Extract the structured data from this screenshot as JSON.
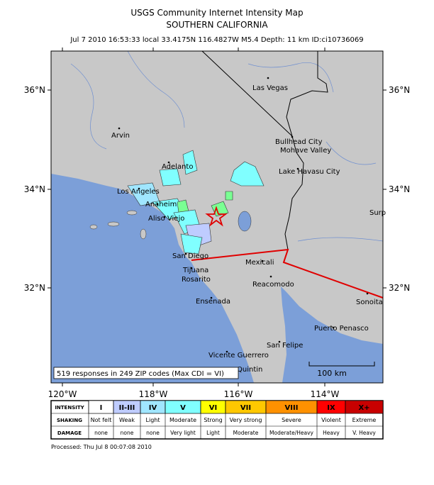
{
  "header": {
    "title": "USGS Community Internet Intensity Map",
    "subtitle": "SOUTHERN CALIFORNIA",
    "info": "Jul 7 2010 16:53:33 local 33.4175N 116.4827W M5.4 Depth: 11 km ID:ci10736069"
  },
  "axes": {
    "x_labels": [
      "120°W",
      "118°W",
      "116°W",
      "114°W"
    ],
    "y_labels": [
      "36°N",
      "34°N",
      "32°N"
    ]
  },
  "cities": [
    "Las Vegas",
    "Arvin",
    "Bullhead City",
    "Mohave Valley",
    "Lake Havasu City",
    "Adelanto",
    "Los Angeles",
    "Anaheim",
    "Aliso Viejo",
    "San Diego",
    "Tijuana",
    "Rosarito",
    "Ensenada",
    "Mexicali",
    "Reacomodo",
    "Puerto Penasco",
    "San Felipe",
    "Vicente Guerrero",
    "Quintin",
    "Sonoita",
    "Surp"
  ],
  "summary": "519 responses in 249 ZIP codes (Max CDI = VI)",
  "scale_label": "100 km",
  "legend": {
    "row_labels": [
      "INTENSITY",
      "SHAKING",
      "DAMAGE"
    ],
    "intensity": [
      "I",
      "II-III",
      "IV",
      "V",
      "VI",
      "VII",
      "VIII",
      "IX",
      "X+"
    ],
    "shaking": [
      "Not felt",
      "Weak",
      "Light",
      "Moderate",
      "Strong",
      "Very strong",
      "Severe",
      "Violent",
      "Extreme"
    ],
    "damage": [
      "none",
      "none",
      "none",
      "Very light",
      "Light",
      "Moderate",
      "Moderate/Heavy",
      "Heavy",
      "V. Heavy"
    ],
    "colors": [
      "#ffffff",
      "#bfccff",
      "#a0e6ff",
      "#80ffff",
      "#ffff00",
      "#ffc800",
      "#ff9100",
      "#ff0000",
      "#c80000"
    ]
  },
  "footer": "Processed: Thu Jul  8 00:07:08 2010"
}
